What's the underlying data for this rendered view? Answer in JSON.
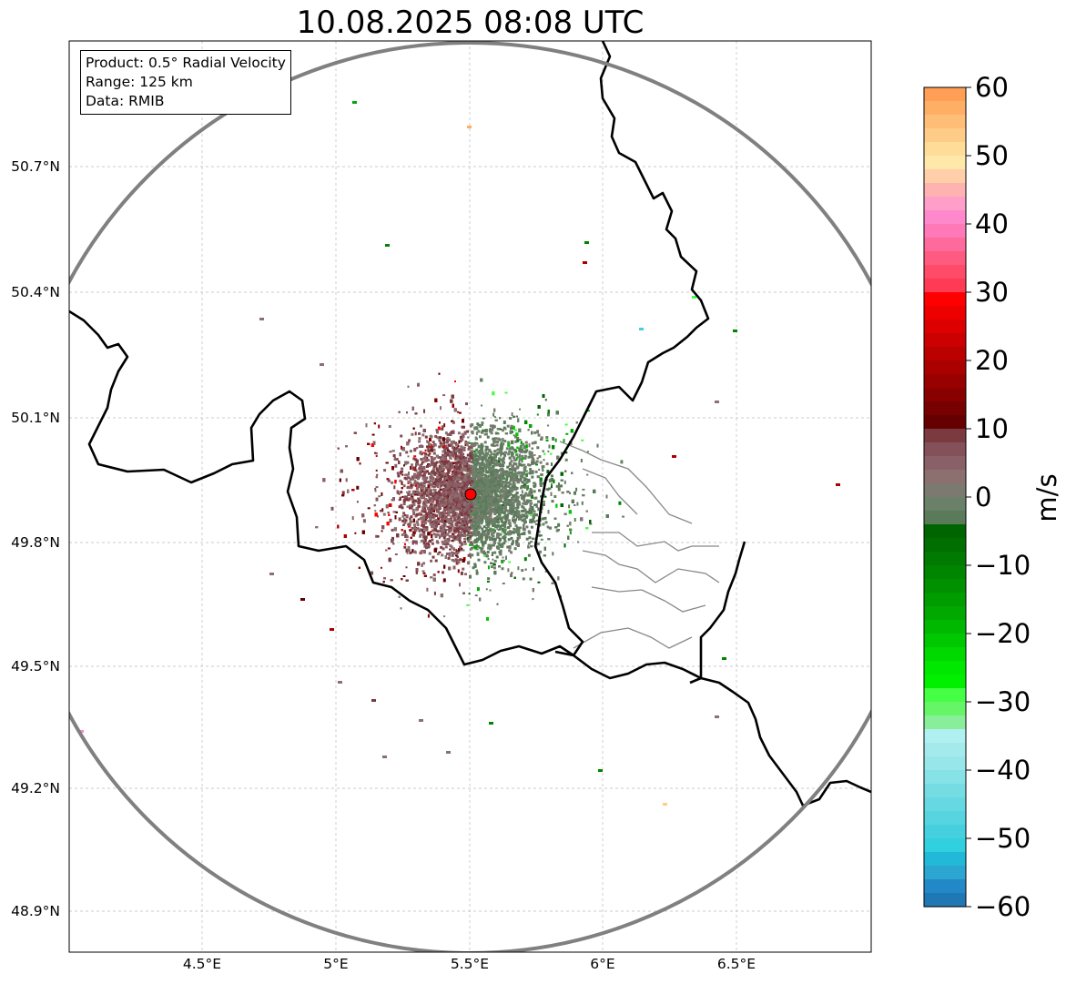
{
  "title": "10.08.2025 08:08 UTC",
  "info": {
    "product": "Product: 0.5° Radial Velocity",
    "range": "Range: 125 km",
    "source": "Data: RMIB"
  },
  "axes": {
    "lat_labels": [
      "50.7°N",
      "50.4°N",
      "50.1°N",
      "49.8°N",
      "49.5°N",
      "49.2°N",
      "48.9°N"
    ],
    "lon_labels": [
      "4.5°E",
      "5°E",
      "5.5°E",
      "6°E",
      "6.5°E"
    ]
  },
  "colorbar": {
    "unit": "m/s",
    "ticks": [
      "60",
      "50",
      "40",
      "30",
      "20",
      "10",
      "0",
      "−10",
      "−20",
      "−30",
      "−40",
      "−50",
      "−60"
    ],
    "colors": [
      "#ff9e55",
      "#ffae66",
      "#ffbe77",
      "#ffcc88",
      "#ffdd99",
      "#ffe8aa",
      "#ffcfaa",
      "#ffb3b0",
      "#ff9fc9",
      "#ff88cc",
      "#ff78b8",
      "#ff6a9c",
      "#ff5a80",
      "#ff4a68",
      "#ff3a55",
      "#ff0000",
      "#ee0000",
      "#dd0000",
      "#cc0000",
      "#bb0000",
      "#aa0000",
      "#990000",
      "#880000",
      "#770000",
      "#660000",
      "#7a3a40",
      "#84505a",
      "#8a6068",
      "#8c7070",
      "#7c7a70",
      "#6a8068",
      "#5a7a5a",
      "#006400",
      "#006e00",
      "#007a00",
      "#008500",
      "#009000",
      "#009c00",
      "#00a800",
      "#00b800",
      "#00c800",
      "#00d800",
      "#00e800",
      "#00f000",
      "#44ff44",
      "#66f566",
      "#88ee99",
      "#b0f0f0",
      "#a4eaec",
      "#96e6ea",
      "#86e2e6",
      "#76dce4",
      "#66d8e2",
      "#56d4e0",
      "#44d0de",
      "#30d0de",
      "#22b8d8",
      "#2aa6d0",
      "#2288c8",
      "#1f77b4"
    ]
  },
  "map": {
    "lat_range": [
      48.8,
      50.95
    ],
    "lon_range": [
      4.0,
      7.0
    ],
    "radar_site": {
      "lat": 49.915,
      "lon": 5.505
    },
    "grid": true
  }
}
